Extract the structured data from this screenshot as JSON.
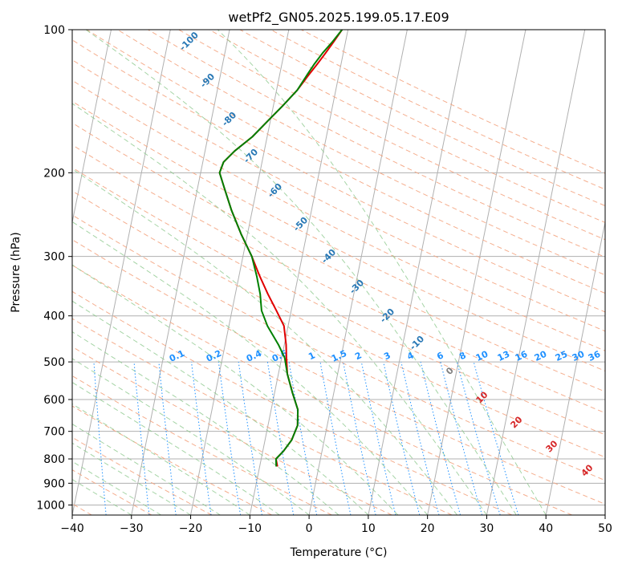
{
  "chart_data": {
    "type": "line",
    "title": "wetPf2_GN05.2025.199.05.17.E09",
    "xlabel": "Temperature (°C)",
    "ylabel": "Pressure (hPa)",
    "xlim": [
      -40,
      50
    ],
    "ylim": [
      1050,
      100
    ],
    "y_scale": "log",
    "grid": true,
    "x_ticks": [
      -40,
      -30,
      -20,
      -10,
      0,
      10,
      20,
      30,
      40,
      50
    ],
    "y_ticks": [
      100,
      200,
      300,
      400,
      500,
      600,
      700,
      800,
      900,
      1000
    ],
    "background_lines": {
      "dry_adiabats_labels": [
        "-100",
        "-90",
        "-80",
        "-70",
        "-60",
        "-50",
        "-40",
        "-30",
        "-20",
        "-10"
      ],
      "mixing_ratio_labels": [
        "0.1",
        "0.2",
        "0.4",
        "0.6",
        "1",
        "1.5",
        "2",
        "3",
        "4",
        "6",
        "8",
        "10",
        "13",
        "16",
        "20",
        "25",
        "30",
        "36"
      ],
      "moist_adiabat_labels": [
        "0",
        "10",
        "20",
        "30",
        "40"
      ]
    },
    "series": [
      {
        "color": "#e00000",
        "points": [
          [
            -7.0,
            830
          ],
          [
            -7.5,
            800
          ],
          [
            -6.5,
            770
          ],
          [
            -5.5,
            730
          ],
          [
            -5.0,
            680
          ],
          [
            -5.5,
            630
          ],
          [
            -7.0,
            580
          ],
          [
            -8.5,
            530
          ],
          [
            -9.2,
            490
          ],
          [
            -9.7,
            460
          ],
          [
            -10.7,
            420
          ],
          [
            -12.5,
            390
          ],
          [
            -14.5,
            360
          ],
          [
            -16.5,
            330
          ],
          [
            -18.5,
            300
          ],
          [
            -21.0,
            270
          ],
          [
            -23.5,
            240
          ],
          [
            -25.5,
            215
          ],
          [
            -26.8,
            200
          ],
          [
            -26.5,
            190
          ],
          [
            -25.0,
            180
          ],
          [
            -22.5,
            168
          ],
          [
            -20.5,
            156
          ],
          [
            -18.5,
            145
          ],
          [
            -16.5,
            134
          ],
          [
            -15.0,
            124
          ],
          [
            -14.0,
            118
          ],
          [
            -13.0,
            112
          ],
          [
            -12.0,
            106
          ],
          [
            -11.0,
            100
          ]
        ]
      },
      {
        "color": "#008000",
        "points": [
          [
            -7.2,
            830
          ],
          [
            -7.5,
            800
          ],
          [
            -6.5,
            770
          ],
          [
            -5.5,
            730
          ],
          [
            -5.0,
            680
          ],
          [
            -5.5,
            630
          ],
          [
            -7.0,
            580
          ],
          [
            -8.5,
            530
          ],
          [
            -9.5,
            490
          ],
          [
            -11.0,
            460
          ],
          [
            -13.5,
            420
          ],
          [
            -15.0,
            390
          ],
          [
            -15.8,
            360
          ],
          [
            -17.0,
            330
          ],
          [
            -18.5,
            300
          ],
          [
            -21.0,
            270
          ],
          [
            -23.5,
            240
          ],
          [
            -25.5,
            215
          ],
          [
            -26.8,
            200
          ],
          [
            -26.5,
            190
          ],
          [
            -25.0,
            180
          ],
          [
            -22.5,
            168
          ],
          [
            -20.5,
            156
          ],
          [
            -18.5,
            145
          ],
          [
            -16.5,
            134
          ],
          [
            -15.3,
            124
          ],
          [
            -14.5,
            118
          ],
          [
            -13.5,
            112
          ],
          [
            -12.2,
            106
          ],
          [
            -11.0,
            100
          ]
        ]
      }
    ]
  }
}
